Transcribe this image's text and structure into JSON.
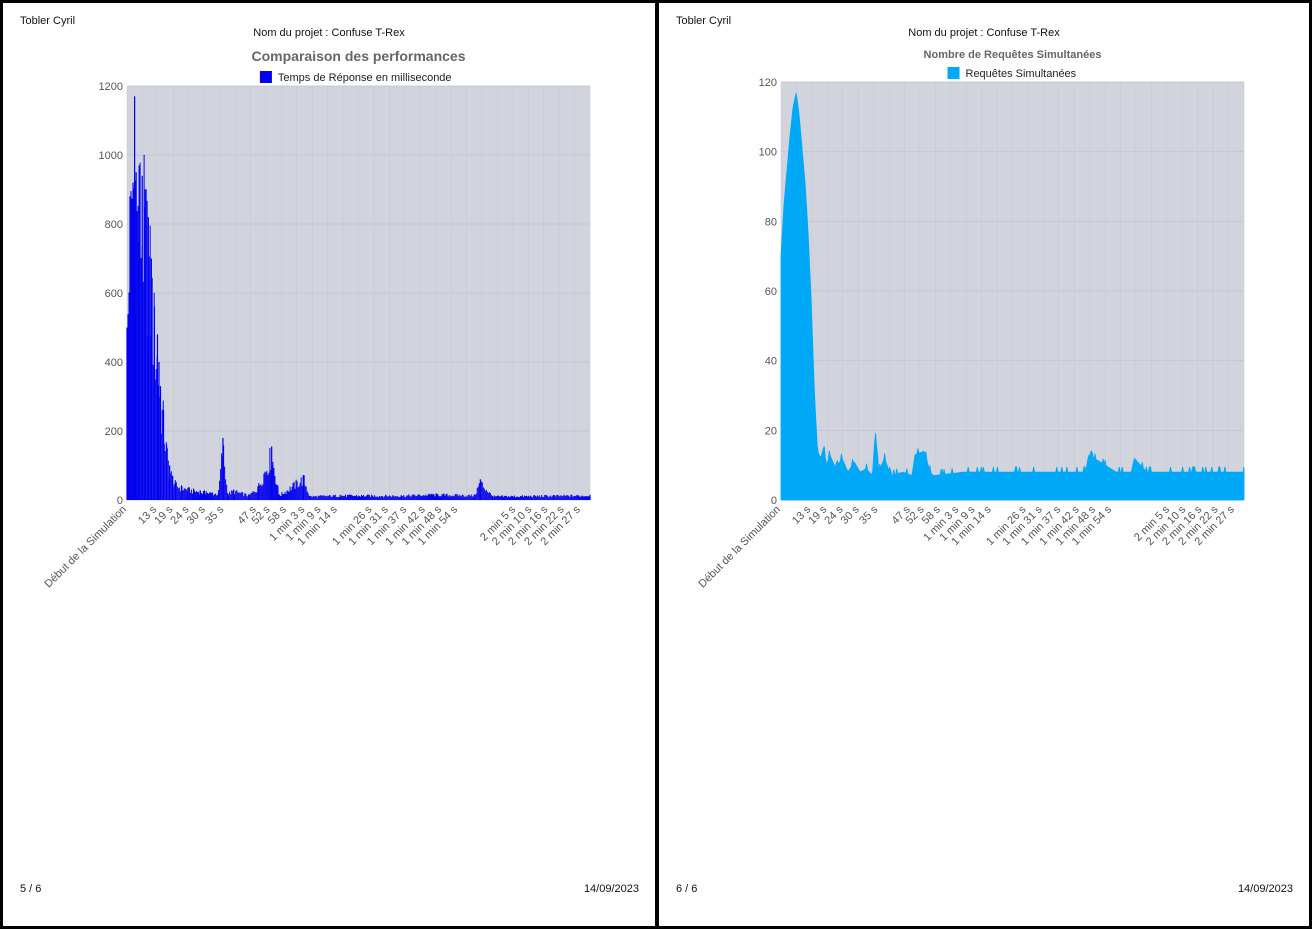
{
  "pages": [
    {
      "author": "Tobler Cyril",
      "project": "Nom du projet : Confuse T-Rex",
      "page_number": "5 / 6",
      "date": "14/09/2023"
    },
    {
      "author": "Tobler Cyril",
      "project": "Nom du projet : Confuse T-Rex",
      "page_number": "6 / 6",
      "date": "14/09/2023"
    }
  ],
  "chart_data": [
    {
      "type": "bar",
      "title": "Comparaison des performances",
      "legend": "Temps de Réponse en milliseconde",
      "legend_position": "top",
      "color": "#0000ee",
      "plot_background": "#d1d4dd",
      "grid": true,
      "ylim": [
        0,
        1200
      ],
      "yticks": [
        0,
        200,
        400,
        600,
        800,
        1000,
        1200
      ],
      "x_tick_labels": [
        "Début de la Simulation",
        "13 s",
        "19 s",
        "24 s",
        "30 s",
        "35 s",
        "47 s",
        "52 s",
        "58 s",
        "1 min 3 s",
        "1 min 9 s",
        "1 min 14 s",
        "1 min 26 s",
        "1 min 31 s",
        "1 min 37 s",
        "1 min 42 s",
        "1 min 48 s",
        "1 min 54 s",
        "2 min 5 s",
        "2 min 10 s",
        "2 min 16 s",
        "2 min 22 s",
        "2 min 27 s"
      ],
      "x_range_seconds": [
        0,
        152
      ],
      "series": [
        {
          "name": "Temps de Réponse en milliseconde",
          "x": [
            0,
            1,
            2,
            2.5,
            3,
            4,
            5,
            6,
            7,
            8,
            9,
            10,
            10.5,
            11,
            12,
            13,
            14,
            15,
            16,
            18,
            20,
            22,
            24,
            26,
            28,
            30,
            31.5,
            33,
            35,
            40,
            43,
            47.5,
            50,
            58,
            60,
            70,
            90,
            100,
            114,
            116,
            120,
            140,
            152
          ],
          "y": [
            500,
            880,
            920,
            1170,
            950,
            970,
            940,
            900,
            820,
            700,
            560,
            480,
            400,
            330,
            260,
            160,
            100,
            70,
            50,
            40,
            35,
            30,
            28,
            25,
            22,
            20,
            180,
            20,
            30,
            15,
            40,
            155,
            15,
            72,
            12,
            15,
            14,
            18,
            15,
            60,
            12,
            14,
            15
          ]
        }
      ]
    },
    {
      "type": "area",
      "title": "Nombre de Requêtes Simultanées",
      "legend": "Requêtes Simultanées",
      "legend_position": "top",
      "color": "#00a8f8",
      "plot_background": "#d1d4dd",
      "grid": true,
      "ylim": [
        0,
        120
      ],
      "yticks": [
        0,
        20,
        40,
        60,
        80,
        100,
        120
      ],
      "x_tick_labels": [
        "Début de la Simulation",
        "13 s",
        "19 s",
        "24 s",
        "30 s",
        "35 s",
        "47 s",
        "52 s",
        "58 s",
        "1 min 3 s",
        "1 min 9 s",
        "1 min 14 s",
        "1 min 26 s",
        "1 min 31 s",
        "1 min 37 s",
        "1 min 42 s",
        "1 min 48 s",
        "1 min 54 s",
        "2 min 5 s",
        "2 min 10 s",
        "2 min 16 s",
        "2 min 22 s",
        "2 min 27 s"
      ],
      "x_range_seconds": [
        0,
        152
      ],
      "series": [
        {
          "name": "Requêtes Simultanées",
          "x": [
            0,
            1,
            2,
            3,
            4,
            5,
            6,
            7,
            8,
            9,
            10,
            11,
            12,
            13,
            14,
            15,
            16,
            18,
            20,
            22,
            24,
            26,
            28,
            30,
            31,
            32,
            34,
            36,
            40,
            43,
            44,
            47,
            49,
            50,
            60,
            80,
            100,
            101,
            110,
            115,
            116,
            120,
            140,
            152
          ],
          "y": [
            70,
            85,
            95,
            105,
            113,
            117,
            110,
            100,
            90,
            75,
            55,
            30,
            14,
            12,
            15,
            10,
            13,
            9,
            12,
            8,
            11,
            8,
            9,
            7,
            20,
            8,
            12,
            7,
            8,
            7,
            13,
            14,
            8,
            7,
            8,
            8,
            8,
            13,
            8,
            8,
            12,
            8,
            8,
            8
          ]
        }
      ]
    }
  ]
}
